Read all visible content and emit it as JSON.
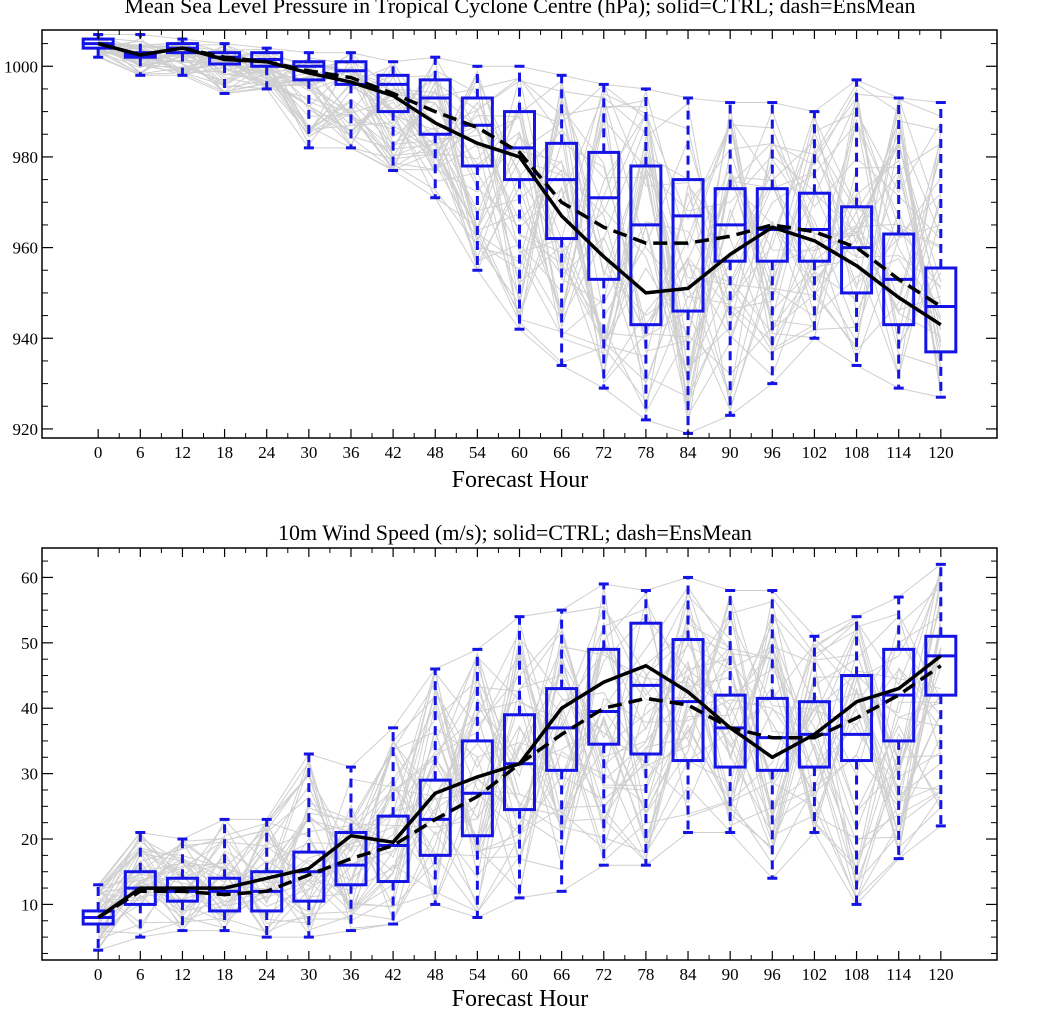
{
  "chart_data": [
    {
      "type": "box",
      "title": "Mean Sea Level Pressure in Tropical Cyclone Centre (hPa); solid=CTRL; dash=EnsMean",
      "xlabel": "Forecast Hour",
      "ylabel": "",
      "x": [
        0,
        6,
        12,
        18,
        24,
        30,
        36,
        42,
        48,
        54,
        60,
        66,
        72,
        78,
        84,
        90,
        96,
        102,
        108,
        114,
        120
      ],
      "xlim": [
        -8,
        128
      ],
      "ylim": [
        918,
        1008
      ],
      "yticks": [
        920,
        940,
        960,
        980,
        1000
      ],
      "grid": false,
      "boxes": {
        "whisker_low": [
          1002,
          998,
          998,
          994,
          995,
          982,
          982,
          977,
          971,
          955,
          942,
          934,
          929,
          922,
          919,
          923,
          930,
          940,
          934,
          929,
          927
        ],
        "q1": [
          1004,
          1002,
          1003,
          1000.5,
          1000,
          997,
          996,
          990,
          985,
          978,
          975,
          962,
          953,
          943,
          946,
          957,
          957,
          957,
          950,
          943,
          937
        ],
        "median": [
          1005,
          1002.5,
          1004,
          1002,
          1001.5,
          1000,
          999,
          996,
          993,
          987,
          982,
          975,
          971,
          965,
          967,
          965,
          964,
          964,
          960,
          953,
          947
        ],
        "q3": [
          1006,
          1003,
          1005,
          1003,
          1003,
          1001,
          1001,
          998,
          997,
          993,
          990,
          983,
          981,
          978,
          975,
          973,
          973,
          972,
          969,
          963,
          955.5
        ],
        "whisker_high": [
          1007,
          1007,
          1006,
          1005,
          1004,
          1003,
          1003,
          1001,
          1002,
          1000,
          1000,
          998,
          996,
          995,
          993,
          992,
          992,
          990,
          997,
          993,
          992
        ]
      },
      "series": [
        {
          "name": "CTRL",
          "style": "solid",
          "values": [
            1005,
            1002.5,
            1004,
            1001.5,
            1001,
            998.5,
            996.5,
            993.5,
            987.5,
            983,
            980,
            967,
            958,
            950,
            951,
            958.5,
            964.5,
            961.5,
            956,
            949,
            943
          ]
        },
        {
          "name": "EnsMean",
          "style": "dash",
          "values": [
            1005,
            1002.5,
            1004,
            1002,
            1001,
            999,
            997.5,
            994,
            990,
            986.5,
            981,
            970,
            964.5,
            961,
            961,
            962.5,
            965,
            963.5,
            960,
            953,
            947
          ]
        }
      ],
      "colors": {
        "box": "#1414e6",
        "member": "#cfcfcf",
        "line": "#000000"
      }
    },
    {
      "type": "box",
      "title": "10m Wind Speed (m/s); solid=CTRL; dash=EnsMean",
      "xlabel": "Forecast Hour",
      "ylabel": "",
      "x": [
        0,
        6,
        12,
        18,
        24,
        30,
        36,
        42,
        48,
        54,
        60,
        66,
        72,
        78,
        84,
        90,
        96,
        102,
        108,
        114,
        120
      ],
      "xlim": [
        -8,
        128
      ],
      "ylim": [
        1.5,
        64.5
      ],
      "yticks": [
        10,
        20,
        30,
        40,
        50,
        60
      ],
      "grid": false,
      "boxes": {
        "whisker_low": [
          3,
          5,
          6,
          6,
          5,
          5,
          6,
          7,
          10,
          8,
          11,
          12,
          16,
          16,
          21,
          21,
          14,
          21,
          10,
          17,
          22
        ],
        "q1": [
          7,
          10,
          10.5,
          9,
          9,
          10.5,
          13,
          13.5,
          17.5,
          20.5,
          24.5,
          30.5,
          34.5,
          33,
          32,
          31,
          30.5,
          31,
          32,
          35,
          42
        ],
        "median": [
          8,
          12.5,
          12,
          12,
          12,
          15,
          16,
          19,
          23,
          27,
          31.5,
          37,
          39.5,
          43.5,
          41,
          37,
          35.5,
          36,
          36,
          42,
          48
        ],
        "q3": [
          9,
          15,
          14,
          14,
          15,
          18,
          21,
          23.5,
          29,
          35,
          39,
          43,
          49,
          53,
          50.5,
          42,
          41.5,
          41,
          45,
          49,
          51
        ],
        "whisker_high": [
          13,
          21,
          20,
          23,
          23,
          33,
          31,
          37,
          46,
          49,
          54,
          55,
          59,
          58,
          60,
          58,
          58,
          51,
          54,
          57,
          62
        ]
      },
      "series": [
        {
          "name": "CTRL",
          "style": "solid",
          "values": [
            8,
            12.5,
            12.5,
            12.5,
            14,
            15.5,
            20.5,
            19.5,
            27,
            29.5,
            31.5,
            40,
            44,
            46.5,
            42.5,
            37,
            32.5,
            36,
            41,
            43,
            48
          ]
        },
        {
          "name": "EnsMean",
          "style": "dash",
          "values": [
            8,
            12,
            12,
            11.5,
            12,
            14.5,
            17,
            19,
            23,
            26.5,
            31.5,
            36,
            40,
            41.5,
            40.5,
            37,
            35.5,
            35.5,
            38.5,
            42,
            46.5
          ]
        }
      ],
      "colors": {
        "box": "#1414e6",
        "member": "#cfcfcf",
        "line": "#000000"
      }
    }
  ]
}
